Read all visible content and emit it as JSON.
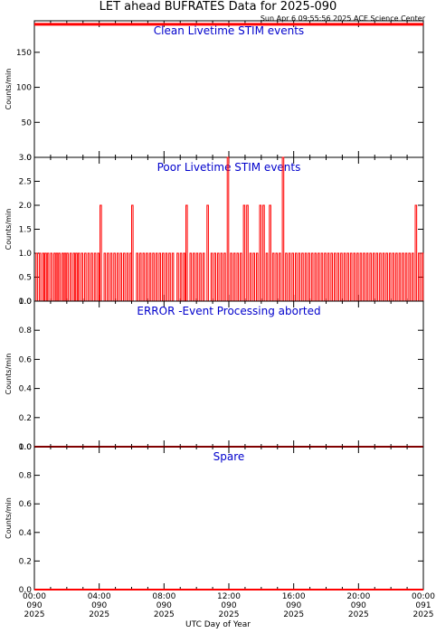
{
  "header": {
    "title": "LET ahead BUFRATES Data for 2025-090",
    "subtitle": "Sun Apr  6 09:55:56 2025 ACE Science Center",
    "xlabel": "UTC Day of Year"
  },
  "colors": {
    "series": "#ff0000",
    "panel_title": "#0000cc",
    "axis": "#000000"
  },
  "x_ticks": [
    {
      "t": 0,
      "l1": "00:00",
      "l2": "090",
      "l3": "2025"
    },
    {
      "t": 4,
      "l1": "04:00",
      "l2": "090",
      "l3": "2025"
    },
    {
      "t": 8,
      "l1": "08:00",
      "l2": "090",
      "l3": "2025"
    },
    {
      "t": 12,
      "l1": "12:00",
      "l2": "090",
      "l3": "2025"
    },
    {
      "t": 16,
      "l1": "16:00",
      "l2": "090",
      "l3": "2025"
    },
    {
      "t": 20,
      "l1": "20:00",
      "l2": "090",
      "l3": "2025"
    },
    {
      "t": 24,
      "l1": "00:00",
      "l2": "091",
      "l3": "2025"
    }
  ],
  "chart_data": [
    {
      "type": "line",
      "title": "Clean Livetime STIM events",
      "ylabel": "Counts/min",
      "xlabel": "UTC Day of Year",
      "xlim": [
        0,
        24
      ],
      "ylim": [
        0,
        195
      ],
      "yticks": [
        0,
        50,
        100,
        150
      ],
      "series": [
        {
          "x": [
            0,
            24
          ],
          "y": [
            190,
            190
          ]
        }
      ]
    },
    {
      "type": "line",
      "title": "Poor Livetime STIM events",
      "ylabel": "Counts/min",
      "xlabel": "UTC Day of Year",
      "xlim": [
        0,
        24
      ],
      "ylim": [
        0,
        3
      ],
      "yticks": [
        0.0,
        0.5,
        1.0,
        1.5,
        2.0,
        2.5,
        3.0
      ],
      "tick_labels": [
        "0.0",
        "0.5",
        "1.0",
        "1.5",
        "2.0",
        "2.5",
        "3.0"
      ],
      "series": [
        {
          "spikes": [
            [
              0.1,
              1
            ],
            [
              0.3,
              1
            ],
            [
              0.5,
              1
            ],
            [
              0.65,
              1
            ],
            [
              0.8,
              1
            ],
            [
              1.0,
              1
            ],
            [
              1.2,
              1
            ],
            [
              1.35,
              1
            ],
            [
              1.5,
              1
            ],
            [
              1.7,
              1
            ],
            [
              1.85,
              1
            ],
            [
              2.0,
              1
            ],
            [
              2.2,
              1
            ],
            [
              2.4,
              1
            ],
            [
              2.55,
              1
            ],
            [
              2.7,
              1
            ],
            [
              2.9,
              1
            ],
            [
              3.1,
              1
            ],
            [
              3.3,
              1
            ],
            [
              3.5,
              1
            ],
            [
              3.7,
              1
            ],
            [
              3.9,
              1
            ],
            [
              4.05,
              2
            ],
            [
              4.3,
              1
            ],
            [
              4.5,
              1
            ],
            [
              4.7,
              1
            ],
            [
              4.9,
              1
            ],
            [
              5.1,
              1
            ],
            [
              5.3,
              1
            ],
            [
              5.5,
              1
            ],
            [
              5.7,
              1
            ],
            [
              5.9,
              1
            ],
            [
              6.0,
              2
            ],
            [
              6.3,
              1
            ],
            [
              6.5,
              1
            ],
            [
              6.7,
              1
            ],
            [
              6.9,
              1
            ],
            [
              7.1,
              1
            ],
            [
              7.3,
              1
            ],
            [
              7.5,
              1
            ],
            [
              7.7,
              1
            ],
            [
              7.9,
              1
            ],
            [
              8.1,
              1
            ],
            [
              8.3,
              1
            ],
            [
              8.5,
              1
            ],
            [
              8.8,
              1
            ],
            [
              9.0,
              1
            ],
            [
              9.2,
              1
            ],
            [
              9.35,
              2
            ],
            [
              9.6,
              1
            ],
            [
              9.8,
              1
            ],
            [
              10.0,
              1
            ],
            [
              10.2,
              1
            ],
            [
              10.4,
              1
            ],
            [
              10.65,
              2
            ],
            [
              10.9,
              1
            ],
            [
              11.1,
              1
            ],
            [
              11.3,
              1
            ],
            [
              11.5,
              1
            ],
            [
              11.7,
              1
            ],
            [
              11.9,
              3
            ],
            [
              12.1,
              1
            ],
            [
              12.3,
              1
            ],
            [
              12.5,
              1
            ],
            [
              12.7,
              1
            ],
            [
              12.9,
              2
            ],
            [
              13.1,
              2
            ],
            [
              13.3,
              1
            ],
            [
              13.5,
              1
            ],
            [
              13.7,
              1
            ],
            [
              13.9,
              2
            ],
            [
              14.1,
              2
            ],
            [
              14.3,
              1
            ],
            [
              14.5,
              2
            ],
            [
              14.7,
              1
            ],
            [
              14.9,
              1
            ],
            [
              15.1,
              1
            ],
            [
              15.3,
              3
            ],
            [
              15.5,
              1
            ],
            [
              15.7,
              1
            ],
            [
              15.9,
              1
            ],
            [
              16.1,
              1
            ],
            [
              16.3,
              1
            ],
            [
              16.5,
              1
            ],
            [
              16.7,
              1
            ],
            [
              16.9,
              1
            ],
            [
              17.1,
              1
            ],
            [
              17.3,
              1
            ],
            [
              17.5,
              1
            ],
            [
              17.7,
              1
            ],
            [
              17.9,
              1
            ],
            [
              18.1,
              1
            ],
            [
              18.3,
              1
            ],
            [
              18.5,
              1
            ],
            [
              18.7,
              1
            ],
            [
              18.9,
              1
            ],
            [
              19.1,
              1
            ],
            [
              19.3,
              1
            ],
            [
              19.5,
              1
            ],
            [
              19.7,
              1
            ],
            [
              19.9,
              1
            ],
            [
              20.1,
              1
            ],
            [
              20.3,
              1
            ],
            [
              20.5,
              1
            ],
            [
              20.7,
              1
            ],
            [
              20.9,
              1
            ],
            [
              21.1,
              1
            ],
            [
              21.3,
              1
            ],
            [
              21.5,
              1
            ],
            [
              21.7,
              1
            ],
            [
              21.9,
              1
            ],
            [
              22.1,
              1
            ],
            [
              22.3,
              1
            ],
            [
              22.5,
              1
            ],
            [
              22.7,
              1
            ],
            [
              22.9,
              1
            ],
            [
              23.1,
              1
            ],
            [
              23.3,
              1
            ],
            [
              23.5,
              2
            ],
            [
              23.7,
              1
            ],
            [
              23.9,
              1
            ]
          ]
        }
      ]
    },
    {
      "type": "line",
      "title": "ERROR -Event Processing aborted",
      "ylabel": "Counts/min",
      "xlabel": "UTC Day of Year",
      "xlim": [
        0,
        24
      ],
      "ylim": [
        0,
        1
      ],
      "yticks": [
        0.0,
        0.2,
        0.4,
        0.6,
        0.8,
        1.0
      ],
      "tick_labels": [
        "0.0",
        "0.2",
        "0.4",
        "0.6",
        "0.8",
        "1.0"
      ],
      "series": [
        {
          "x": [
            0,
            24
          ],
          "y": [
            0,
            0
          ]
        }
      ]
    },
    {
      "type": "line",
      "title": "Spare",
      "ylabel": "Counts/min",
      "xlabel": "UTC Day of Year",
      "xlim": [
        0,
        24
      ],
      "ylim": [
        0,
        1
      ],
      "yticks": [
        0.0,
        0.2,
        0.4,
        0.6,
        0.8,
        1.0
      ],
      "tick_labels": [
        "0.0",
        "0.2",
        "0.4",
        "0.6",
        "0.8",
        "1.0"
      ],
      "series": [
        {
          "x": [
            0,
            24
          ],
          "y": [
            0,
            0
          ]
        }
      ]
    }
  ]
}
